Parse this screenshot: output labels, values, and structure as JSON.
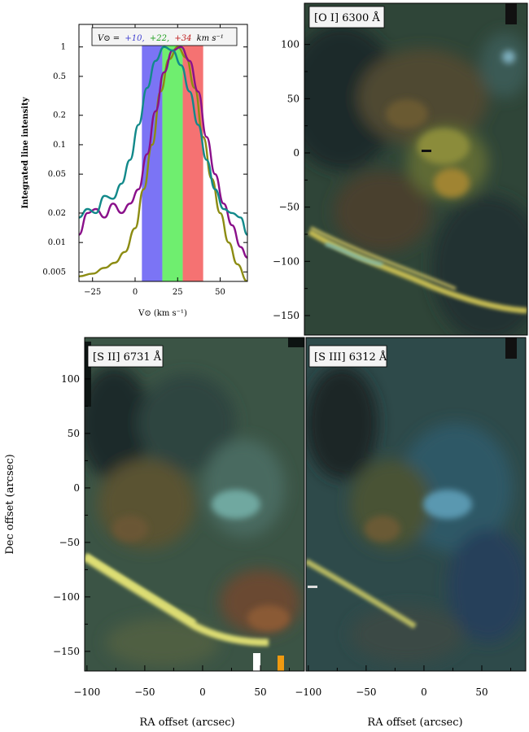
{
  "figure": {
    "panels": [
      {
        "id": "oi",
        "label": "[O I] 6300 Å"
      },
      {
        "id": "sii",
        "label": "[S II] 6731 Å"
      },
      {
        "id": "siii",
        "label": "[S III] 6312 Å"
      }
    ],
    "map_y_axis": {
      "title": "Dec offset (arcsec)"
    },
    "map_x_axis": {
      "title": "RA offset (arcsec)"
    },
    "colors": {
      "blue_band": "#7b74f5",
      "green_band": "#6fee6f",
      "red_band": "#f57272",
      "teal": "#12898a",
      "olive": "#8c8c12",
      "purple": "#8a108a"
    }
  },
  "chart_data": [
    {
      "type": "line",
      "id": "line-profile",
      "title": "",
      "legend": {
        "prefix": "V⊙ =",
        "entries": [
          "+10,",
          "+22,",
          "+34"
        ],
        "suffix": "km s⁻¹"
      },
      "xlabel": "V⊙ (km s⁻¹)",
      "ylabel": "Integrated line intensity",
      "xlim": [
        -33,
        66
      ],
      "ylim_log": [
        0.004,
        1.7
      ],
      "x_ticks": [
        -25,
        0,
        25,
        50
      ],
      "y_ticks": [
        1,
        0.5,
        0.2,
        0.1,
        0.05,
        0.02,
        0.01,
        0.005
      ],
      "y_tick_labels": [
        "1",
        "0.5",
        "0.2",
        "0.1",
        "0.05",
        "0.02",
        "0.01",
        "0.005"
      ],
      "bands": [
        {
          "name": "blue",
          "x0": 4,
          "x1": 16,
          "color": "#7b74f5"
        },
        {
          "name": "green",
          "x0": 16,
          "x1": 28,
          "color": "#6fee6f"
        },
        {
          "name": "red",
          "x0": 28,
          "x1": 40,
          "color": "#f57272"
        }
      ],
      "series": [
        {
          "name": "[O I]",
          "color": "#8c8c12",
          "x": [
            -33,
            -25,
            -18,
            -12,
            -6,
            0,
            5,
            10,
            15,
            20,
            25,
            30,
            35,
            40,
            45,
            50,
            55,
            60,
            66
          ],
          "y": [
            0.0045,
            0.0048,
            0.0055,
            0.0062,
            0.008,
            0.014,
            0.035,
            0.1,
            0.35,
            0.75,
            1.0,
            0.78,
            0.38,
            0.12,
            0.045,
            0.02,
            0.01,
            0.006,
            0.004
          ]
        },
        {
          "name": "[S II]",
          "color": "#8a108a",
          "x": [
            -33,
            -28,
            -23,
            -18,
            -13,
            -8,
            -3,
            2,
            7,
            12,
            17,
            22,
            27,
            32,
            37,
            42,
            47,
            52,
            57,
            62,
            66
          ],
          "y": [
            0.012,
            0.02,
            0.022,
            0.018,
            0.025,
            0.02,
            0.025,
            0.035,
            0.08,
            0.22,
            0.55,
            0.92,
            1.0,
            0.72,
            0.35,
            0.12,
            0.05,
            0.025,
            0.015,
            0.009,
            0.007
          ]
        },
        {
          "name": "[S III]",
          "color": "#12898a",
          "x": [
            -33,
            -28,
            -23,
            -18,
            -13,
            -8,
            -3,
            2,
            7,
            12,
            17,
            22,
            27,
            32,
            37,
            42,
            47,
            52,
            57,
            62,
            66
          ],
          "y": [
            0.018,
            0.022,
            0.02,
            0.03,
            0.028,
            0.04,
            0.07,
            0.16,
            0.38,
            0.72,
            1.0,
            0.92,
            0.65,
            0.35,
            0.16,
            0.07,
            0.035,
            0.022,
            0.02,
            0.018,
            0.012
          ]
        }
      ]
    },
    {
      "type": "heatmap",
      "id": "oi-map",
      "title": "[O I] 6300 Å",
      "xlim": [
        -100,
        88
      ],
      "ylim": [
        -168,
        138
      ],
      "x_ticks": [],
      "y_ticks": [
        100,
        50,
        0,
        -50,
        -100,
        -150
      ]
    },
    {
      "type": "heatmap",
      "id": "sii-map",
      "title": "[S II] 6731 Å",
      "xlim": [
        -102,
        88
      ],
      "ylim": [
        -168,
        138
      ],
      "x_ticks": [
        -100,
        -50,
        0,
        50
      ],
      "y_ticks": [
        100,
        50,
        0,
        -50,
        -100,
        -150
      ]
    },
    {
      "type": "heatmap",
      "id": "siii-map",
      "title": "[S III] 6312 Å",
      "xlim": [
        -102,
        88
      ],
      "ylim": [
        -168,
        138
      ],
      "x_ticks": [
        -100,
        -50,
        0,
        50
      ],
      "y_ticks": []
    }
  ]
}
